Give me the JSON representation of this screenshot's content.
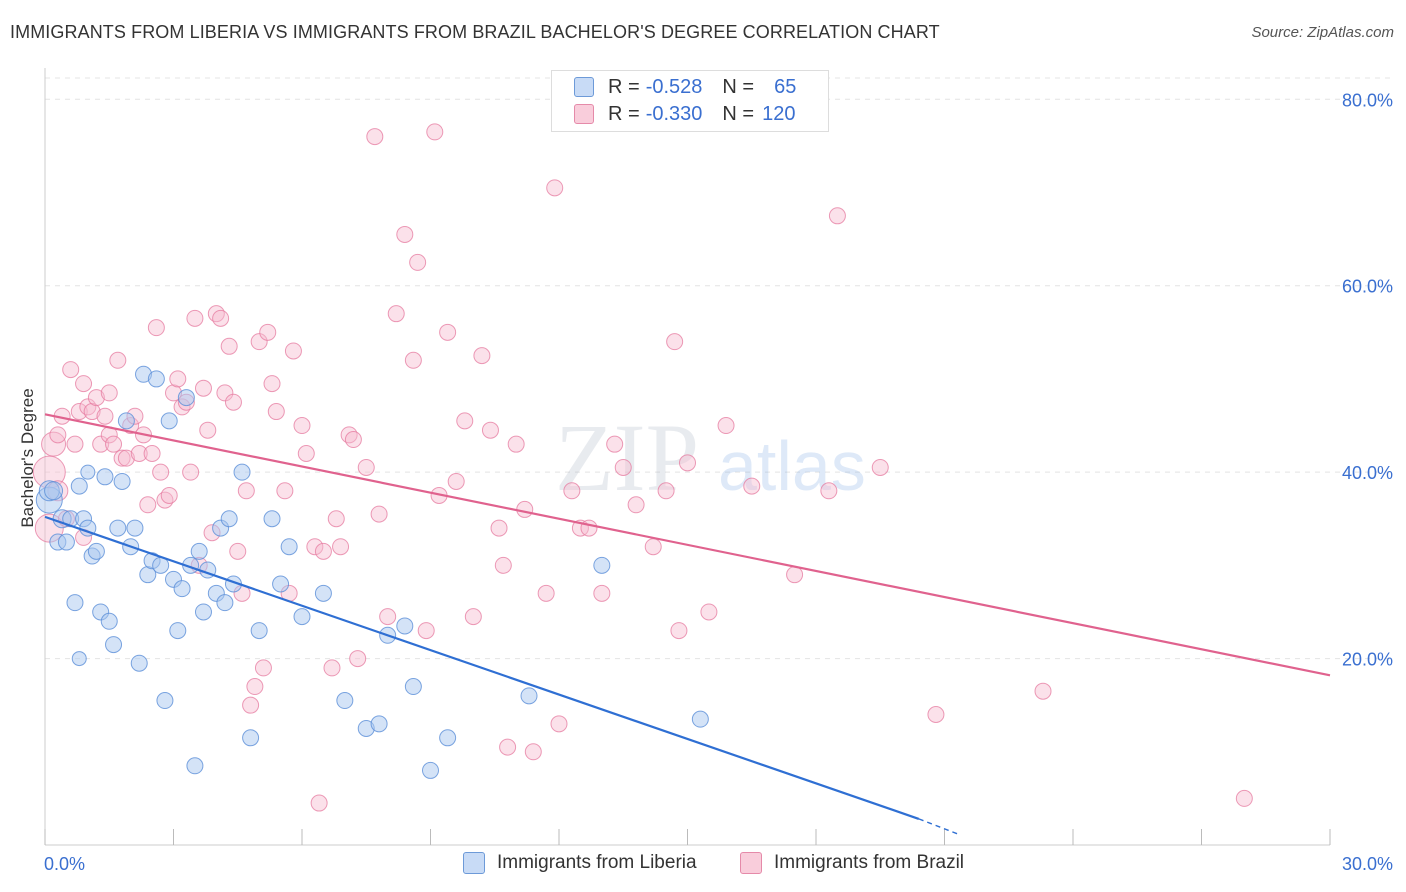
{
  "title": "IMMIGRANTS FROM LIBERIA VS IMMIGRANTS FROM BRAZIL BACHELOR'S DEGREE CORRELATION CHART",
  "source": "Source: ZipAtlas.com",
  "watermark": {
    "zip": "ZIP",
    "atlas": "atlas"
  },
  "legend": {
    "rows": [
      {
        "r_label": "R =",
        "r_value": "-0.528",
        "n_label": "N =",
        "n_value": "65"
      },
      {
        "r_label": "R =",
        "r_value": "-0.330",
        "n_label": "N =",
        "n_value": "120"
      }
    ]
  },
  "colors": {
    "liberia_fill": "#aac8f0",
    "liberia_stroke": "#5b8fd8",
    "liberia_line": "#2f6fd3",
    "brazil_fill": "#f7bcd0",
    "brazil_stroke": "#e5799f",
    "brazil_line": "#e0628e",
    "axis_text": "#3a6fd0",
    "grid": "#e4e4e4"
  },
  "chart_data": {
    "type": "scatter",
    "title": "IMMIGRANTS FROM LIBERIA VS IMMIGRANTS FROM BRAZIL BACHELOR'S DEGREE CORRELATION CHART",
    "xlabel": "",
    "ylabel": "Bachelor's Degree",
    "xlim": [
      0,
      30
    ],
    "ylim": [
      0,
      84
    ],
    "x_tick_labels": [
      "0.0%",
      "30.0%"
    ],
    "y_ticks": [
      20,
      40,
      60,
      80
    ],
    "y_tick_labels": [
      "20.0%",
      "40.0%",
      "60.0%",
      "80.0%"
    ],
    "grid": true,
    "legend_position": "bottom",
    "series": [
      {
        "name": "Immigrants from Liberia",
        "trend": {
          "x": [
            0,
            20.4
          ],
          "y": [
            35.2,
            2.8
          ],
          "dashed_to": [
            21.3,
            1.2
          ]
        },
        "points": [
          [
            0.1,
            37,
            13
          ],
          [
            0.1,
            38,
            10
          ],
          [
            0.2,
            38,
            9
          ],
          [
            0.3,
            32.5,
            8
          ],
          [
            0.4,
            35,
            9
          ],
          [
            0.5,
            32.5,
            8
          ],
          [
            0.6,
            35,
            8
          ],
          [
            0.7,
            26,
            8
          ],
          [
            0.8,
            38.5,
            8
          ],
          [
            0.9,
            35,
            8
          ],
          [
            1.0,
            34,
            8
          ],
          [
            1.1,
            31,
            8
          ],
          [
            1.2,
            31.5,
            8
          ],
          [
            1.3,
            25,
            8
          ],
          [
            1.4,
            39.5,
            8
          ],
          [
            1.5,
            24,
            8
          ],
          [
            1.6,
            21.5,
            8
          ],
          [
            1.7,
            34,
            8
          ],
          [
            1.8,
            39,
            8
          ],
          [
            1.9,
            45.5,
            8
          ],
          [
            2.0,
            32,
            8
          ],
          [
            2.1,
            34,
            8
          ],
          [
            2.2,
            19.5,
            8
          ],
          [
            2.3,
            50.5,
            8
          ],
          [
            2.4,
            29,
            8
          ],
          [
            2.5,
            30.5,
            8
          ],
          [
            2.6,
            50,
            8
          ],
          [
            2.7,
            30,
            8
          ],
          [
            2.8,
            15.5,
            8
          ],
          [
            2.9,
            45.5,
            8
          ],
          [
            3.0,
            28.5,
            8
          ],
          [
            3.1,
            23,
            8
          ],
          [
            3.2,
            27.5,
            8
          ],
          [
            3.3,
            48,
            8
          ],
          [
            3.4,
            30,
            8
          ],
          [
            3.5,
            8.5,
            8
          ],
          [
            3.6,
            31.5,
            8
          ],
          [
            3.7,
            25,
            8
          ],
          [
            3.8,
            29.5,
            8
          ],
          [
            4.0,
            27,
            8
          ],
          [
            4.1,
            34,
            8
          ],
          [
            4.2,
            26,
            8
          ],
          [
            4.3,
            35,
            8
          ],
          [
            4.4,
            28,
            8
          ],
          [
            4.6,
            40,
            8
          ],
          [
            4.8,
            11.5,
            8
          ],
          [
            5.0,
            23,
            8
          ],
          [
            5.3,
            35,
            8
          ],
          [
            5.5,
            28,
            8
          ],
          [
            5.7,
            32,
            8
          ],
          [
            6.0,
            24.5,
            8
          ],
          [
            6.5,
            27,
            8
          ],
          [
            7.0,
            15.5,
            8
          ],
          [
            7.5,
            12.5,
            8
          ],
          [
            7.8,
            13,
            8
          ],
          [
            8.0,
            22.5,
            8
          ],
          [
            8.4,
            23.5,
            8
          ],
          [
            8.6,
            17,
            8
          ],
          [
            9.0,
            8,
            8
          ],
          [
            9.4,
            11.5,
            8
          ],
          [
            11.3,
            16,
            8
          ],
          [
            13.0,
            30,
            8
          ],
          [
            15.3,
            13.5,
            8
          ],
          [
            0.8,
            20,
            7
          ],
          [
            1.0,
            40,
            7
          ]
        ]
      },
      {
        "name": "Immigrants from Brazil",
        "trend": {
          "x": [
            0,
            30
          ],
          "y": [
            46.2,
            18.2
          ]
        },
        "points": [
          [
            0.1,
            40,
            16
          ],
          [
            0.1,
            34,
            14
          ],
          [
            0.2,
            43,
            12
          ],
          [
            0.3,
            38,
            10
          ],
          [
            0.4,
            46,
            8
          ],
          [
            0.5,
            35,
            8
          ],
          [
            0.6,
            51,
            8
          ],
          [
            0.7,
            43,
            8
          ],
          [
            0.8,
            46.5,
            8
          ],
          [
            0.9,
            49.5,
            8
          ],
          [
            1.0,
            47,
            8
          ],
          [
            1.1,
            46.5,
            8
          ],
          [
            1.2,
            48,
            8
          ],
          [
            1.3,
            43,
            8
          ],
          [
            1.4,
            46,
            8
          ],
          [
            1.5,
            44,
            8
          ],
          [
            1.6,
            43,
            8
          ],
          [
            1.7,
            52,
            8
          ],
          [
            1.8,
            41.5,
            8
          ],
          [
            1.9,
            41.5,
            8
          ],
          [
            2.0,
            45,
            8
          ],
          [
            2.1,
            46,
            8
          ],
          [
            2.2,
            42,
            8
          ],
          [
            2.3,
            44,
            8
          ],
          [
            2.5,
            42,
            8
          ],
          [
            2.6,
            55.5,
            8
          ],
          [
            2.7,
            40,
            8
          ],
          [
            2.8,
            37,
            8
          ],
          [
            2.9,
            37.5,
            8
          ],
          [
            3.0,
            48.5,
            8
          ],
          [
            3.1,
            50,
            8
          ],
          [
            3.2,
            47,
            8
          ],
          [
            3.3,
            47.5,
            8
          ],
          [
            3.5,
            56.5,
            8
          ],
          [
            3.6,
            30,
            8
          ],
          [
            3.7,
            49,
            8
          ],
          [
            3.8,
            44.5,
            8
          ],
          [
            3.9,
            33.5,
            8
          ],
          [
            4.0,
            57,
            8
          ],
          [
            4.1,
            56.5,
            8
          ],
          [
            4.2,
            48.5,
            8
          ],
          [
            4.3,
            53.5,
            8
          ],
          [
            4.4,
            47.5,
            8
          ],
          [
            4.5,
            31.5,
            8
          ],
          [
            4.6,
            27,
            8
          ],
          [
            4.7,
            38,
            8
          ],
          [
            4.8,
            15,
            8
          ],
          [
            4.9,
            17,
            8
          ],
          [
            5.0,
            54,
            8
          ],
          [
            5.1,
            19,
            8
          ],
          [
            5.2,
            55,
            8
          ],
          [
            5.3,
            49.5,
            8
          ],
          [
            5.4,
            46.5,
            8
          ],
          [
            5.6,
            38,
            8
          ],
          [
            5.8,
            53,
            8
          ],
          [
            6.0,
            45,
            8
          ],
          [
            6.1,
            42,
            8
          ],
          [
            6.3,
            32,
            8
          ],
          [
            6.4,
            4.5,
            8
          ],
          [
            6.5,
            31.5,
            8
          ],
          [
            6.7,
            19,
            8
          ],
          [
            6.9,
            32,
            8
          ],
          [
            7.1,
            44,
            8
          ],
          [
            7.2,
            43.5,
            8
          ],
          [
            7.3,
            20,
            8
          ],
          [
            7.5,
            40.5,
            8
          ],
          [
            7.7,
            76,
            8
          ],
          [
            7.8,
            35.5,
            8
          ],
          [
            8.0,
            24.5,
            8
          ],
          [
            8.2,
            57,
            8
          ],
          [
            8.4,
            65.5,
            8
          ],
          [
            8.6,
            52,
            8
          ],
          [
            8.7,
            62.5,
            8
          ],
          [
            8.9,
            23,
            8
          ],
          [
            9.1,
            76.5,
            8
          ],
          [
            9.2,
            37.5,
            8
          ],
          [
            9.4,
            55,
            8
          ],
          [
            9.6,
            39,
            8
          ],
          [
            10.0,
            24.5,
            8
          ],
          [
            10.2,
            52.5,
            8
          ],
          [
            10.4,
            44.5,
            8
          ],
          [
            10.6,
            34,
            8
          ],
          [
            10.7,
            30,
            8
          ],
          [
            10.8,
            10.5,
            8
          ],
          [
            11.0,
            43,
            8
          ],
          [
            11.2,
            36,
            8
          ],
          [
            11.4,
            10,
            8
          ],
          [
            11.7,
            27,
            8
          ],
          [
            11.9,
            70.5,
            8
          ],
          [
            12.0,
            13,
            8
          ],
          [
            12.3,
            38,
            8
          ],
          [
            12.5,
            34,
            8
          ],
          [
            12.7,
            34,
            8
          ],
          [
            13.0,
            27,
            8
          ],
          [
            13.3,
            43,
            8
          ],
          [
            13.5,
            40.5,
            8
          ],
          [
            13.8,
            36.5,
            8
          ],
          [
            14.2,
            32,
            8
          ],
          [
            14.5,
            38,
            8
          ],
          [
            14.7,
            54,
            8
          ],
          [
            14.8,
            23,
            8
          ],
          [
            15.0,
            41,
            8
          ],
          [
            15.5,
            25,
            8
          ],
          [
            15.9,
            45,
            8
          ],
          [
            16.5,
            38.5,
            8
          ],
          [
            17.5,
            29,
            8
          ],
          [
            18.3,
            38,
            8
          ],
          [
            18.5,
            67.5,
            8
          ],
          [
            19.5,
            40.5,
            8
          ],
          [
            20.8,
            14,
            8
          ],
          [
            23.3,
            16.5,
            8
          ],
          [
            28.0,
            5,
            8
          ],
          [
            0.3,
            44,
            8
          ],
          [
            0.9,
            33,
            8
          ],
          [
            1.5,
            48.5,
            8
          ],
          [
            2.4,
            36.5,
            8
          ],
          [
            3.4,
            40,
            8
          ],
          [
            5.7,
            27,
            8
          ],
          [
            6.8,
            35,
            8
          ],
          [
            9.8,
            45.5,
            8
          ]
        ]
      }
    ]
  },
  "bottom_legend": [
    "Immigrants from Liberia",
    "Immigrants from Brazil"
  ]
}
